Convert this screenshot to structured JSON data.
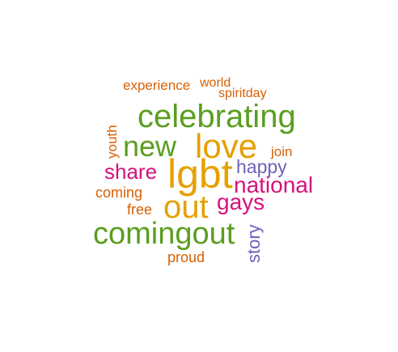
{
  "words": [
    {
      "text": "experience",
      "color": "#d95f02"
    },
    {
      "text": "world",
      "color": "#d95f02"
    },
    {
      "text": "spiritday",
      "color": "#d95f02"
    },
    {
      "text": "celebrating",
      "color": "#5a9e1f"
    },
    {
      "text": "youth",
      "color": "#d95f02"
    },
    {
      "text": "love",
      "color": "#e6a000"
    },
    {
      "text": "new",
      "color": "#5a9e1f"
    },
    {
      "text": "join",
      "color": "#d95f02"
    },
    {
      "text": "share",
      "color": "#d6127c"
    },
    {
      "text": "lgbt",
      "color": "#e6a000"
    },
    {
      "text": "happy",
      "color": "#6c63b8"
    },
    {
      "text": "national",
      "color": "#d6127c"
    },
    {
      "text": "coming",
      "color": "#d95f02"
    },
    {
      "text": "gays",
      "color": "#d6127c"
    },
    {
      "text": "free",
      "color": "#d95f02"
    },
    {
      "text": "out",
      "color": "#e6a000"
    },
    {
      "text": "comingout",
      "color": "#5a9e1f"
    },
    {
      "text": "story",
      "color": "#6c63b8"
    },
    {
      "text": "proud",
      "color": "#d95f02"
    }
  ]
}
